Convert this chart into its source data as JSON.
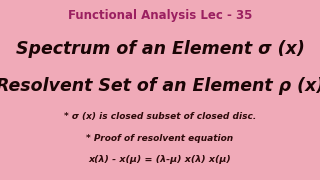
{
  "background_color": "#f0aab8",
  "title_text": "Functional Analysis Lec - 35",
  "title_color": "#9B2060",
  "title_fontsize": 8.5,
  "line1_text": "Spectrum of an Element σ (x)",
  "line1_color": "#1a0505",
  "line1_fontsize": 12.5,
  "line2_text": "Resolvent Set of an Element ρ (x)",
  "line2_color": "#1a0505",
  "line2_fontsize": 12.5,
  "line3_text": "* σ (x) is closed subset of closed disc.",
  "line3_color": "#2d0a0a",
  "line3_fontsize": 6.5,
  "line4_text": "* Proof of resolvent equation",
  "line4_color": "#2d0a0a",
  "line4_fontsize": 6.5,
  "line5_text": "x(λ) - x(μ) = (λ-μ) x(λ) x(μ)",
  "line5_color": "#2d0a0a",
  "line5_fontsize": 6.8,
  "fig_width": 3.2,
  "fig_height": 1.8,
  "dpi": 100
}
